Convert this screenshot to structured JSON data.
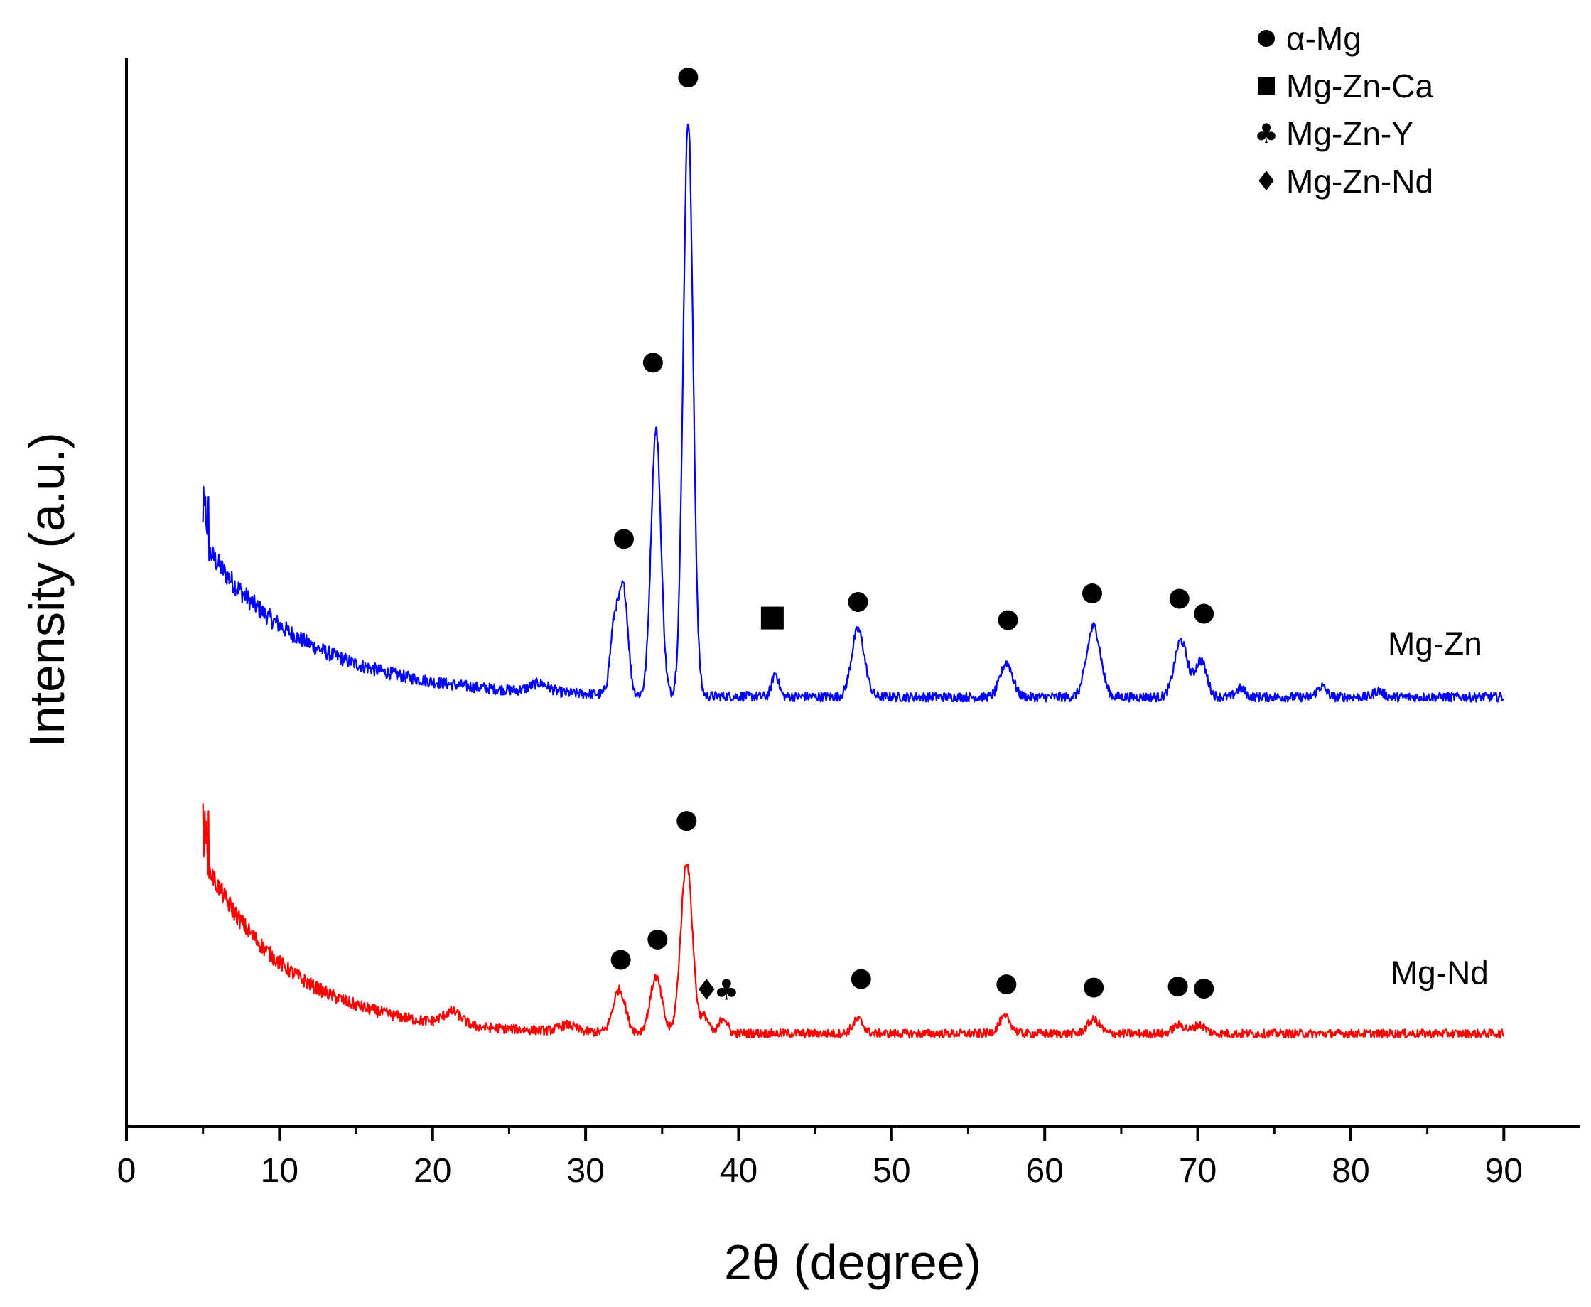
{
  "chart_data": {
    "type": "line",
    "title": "",
    "xlabel": "2θ (degree)",
    "ylabel": "Intensity (a.u.)",
    "xlim": [
      0,
      95
    ],
    "ylim": [
      0,
      100
    ],
    "x_ticks": [
      0,
      10,
      20,
      30,
      40,
      50,
      60,
      70,
      80,
      90
    ],
    "x_tick_labels": [
      "0",
      "10",
      "20",
      "30",
      "40",
      "50",
      "60",
      "70",
      "80",
      "90"
    ],
    "minor_x_step": 5,
    "y_ticks_shown": false,
    "grid": false,
    "x_range_data": [
      5,
      90
    ],
    "series": [
      {
        "name": "Mg-Zn",
        "color": "#0000ff",
        "baseline": 40.2,
        "noise": 0.45,
        "decay": {
          "amplitude": 14.5,
          "tau": 6.5
        },
        "peaks": [
          {
            "x": 27.0,
            "h": 0.8,
            "w": 0.6
          },
          {
            "x": 31.9,
            "h": 6.8,
            "w": 0.28
          },
          {
            "x": 32.5,
            "h": 9.5,
            "w": 0.28
          },
          {
            "x": 34.6,
            "h": 25.0,
            "w": 0.32
          },
          {
            "x": 36.7,
            "h": 54.0,
            "w": 0.32
          },
          {
            "x": 42.4,
            "h": 2.2,
            "w": 0.22
          },
          {
            "x": 47.8,
            "h": 6.3,
            "w": 0.42
          },
          {
            "x": 57.5,
            "h": 3.2,
            "w": 0.4
          },
          {
            "x": 63.2,
            "h": 6.6,
            "w": 0.45
          },
          {
            "x": 68.9,
            "h": 5.3,
            "w": 0.42
          },
          {
            "x": 70.2,
            "h": 3.4,
            "w": 0.38
          },
          {
            "x": 72.8,
            "h": 0.8,
            "w": 0.3
          },
          {
            "x": 78.1,
            "h": 1.0,
            "w": 0.3
          },
          {
            "x": 81.8,
            "h": 0.6,
            "w": 0.3
          }
        ]
      },
      {
        "name": "Mg-Nd",
        "color": "#ff0000",
        "baseline": 8.7,
        "noise": 0.4,
        "decay": {
          "amplitude": 16.5,
          "tau": 5.5
        },
        "peaks": [
          {
            "x": 21.3,
            "h": 1.2,
            "w": 0.6
          },
          {
            "x": 28.8,
            "h": 0.6,
            "w": 0.5
          },
          {
            "x": 32.2,
            "h": 4.0,
            "w": 0.4
          },
          {
            "x": 34.6,
            "h": 5.2,
            "w": 0.38
          },
          {
            "x": 36.6,
            "h": 16.0,
            "w": 0.38
          },
          {
            "x": 37.8,
            "h": 1.5,
            "w": 0.25
          },
          {
            "x": 39.0,
            "h": 1.5,
            "w": 0.25
          },
          {
            "x": 47.8,
            "h": 1.3,
            "w": 0.35
          },
          {
            "x": 57.4,
            "h": 1.5,
            "w": 0.4
          },
          {
            "x": 63.2,
            "h": 1.3,
            "w": 0.4
          },
          {
            "x": 68.8,
            "h": 0.8,
            "w": 0.4
          },
          {
            "x": 70.1,
            "h": 0.8,
            "w": 0.4
          }
        ]
      }
    ],
    "phase_markers": [
      {
        "series": "Mg-Zn",
        "symbol": "●",
        "phase": "α-Mg",
        "x": 32.5,
        "y": 55.0
      },
      {
        "series": "Mg-Zn",
        "symbol": "●",
        "phase": "α-Mg",
        "x": 34.4,
        "y": 71.5
      },
      {
        "series": "Mg-Zn",
        "symbol": "●",
        "phase": "α-Mg",
        "x": 36.7,
        "y": 98.2
      },
      {
        "series": "Mg-Zn",
        "symbol": "■",
        "phase": "Mg-Zn-Ca",
        "x": 42.2,
        "y": 47.6
      },
      {
        "series": "Mg-Zn",
        "symbol": "●",
        "phase": "α-Mg",
        "x": 47.8,
        "y": 49.1
      },
      {
        "series": "Mg-Zn",
        "symbol": "●",
        "phase": "α-Mg",
        "x": 57.6,
        "y": 47.4
      },
      {
        "series": "Mg-Zn",
        "symbol": "●",
        "phase": "α-Mg",
        "x": 63.1,
        "y": 49.9
      },
      {
        "series": "Mg-Zn",
        "symbol": "●",
        "phase": "α-Mg",
        "x": 68.8,
        "y": 49.4
      },
      {
        "series": "Mg-Zn",
        "symbol": "●",
        "phase": "α-Mg",
        "x": 70.4,
        "y": 48.0
      },
      {
        "series": "Mg-Nd",
        "symbol": "●",
        "phase": "α-Mg",
        "x": 32.3,
        "y": 15.6
      },
      {
        "series": "Mg-Nd",
        "symbol": "●",
        "phase": "α-Mg",
        "x": 34.7,
        "y": 17.5
      },
      {
        "series": "Mg-Nd",
        "symbol": "●",
        "phase": "α-Mg",
        "x": 36.6,
        "y": 28.6
      },
      {
        "series": "Mg-Nd",
        "symbol": "♦",
        "phase": "Mg-Zn-Nd",
        "x": 37.9,
        "y": 12.8
      },
      {
        "series": "Mg-Nd",
        "symbol": "♣",
        "phase": "Mg-Zn-Y",
        "x": 39.2,
        "y": 12.8
      },
      {
        "series": "Mg-Nd",
        "symbol": "●",
        "phase": "α-Mg",
        "x": 48.0,
        "y": 13.8
      },
      {
        "series": "Mg-Nd",
        "symbol": "●",
        "phase": "α-Mg",
        "x": 57.5,
        "y": 13.3
      },
      {
        "series": "Mg-Nd",
        "symbol": "●",
        "phase": "α-Mg",
        "x": 63.2,
        "y": 13.0
      },
      {
        "series": "Mg-Nd",
        "symbol": "●",
        "phase": "α-Mg",
        "x": 68.7,
        "y": 13.1
      },
      {
        "series": "Mg-Nd",
        "symbol": "●",
        "phase": "α-Mg",
        "x": 70.4,
        "y": 12.9
      }
    ],
    "series_labels": [
      {
        "text": "Mg-Zn",
        "x": 85.5,
        "y": 45.2
      },
      {
        "text": "Mg-Nd",
        "x": 85.8,
        "y": 14.4
      }
    ],
    "legend": {
      "position": "top-right",
      "entries": [
        {
          "symbol": "●",
          "label": "α-Mg"
        },
        {
          "symbol": "■",
          "label": "Mg-Zn-Ca"
        },
        {
          "symbol": "♣",
          "label": "Mg-Zn-Y"
        },
        {
          "symbol": "♦",
          "label": "Mg-Zn-Nd"
        }
      ]
    }
  }
}
